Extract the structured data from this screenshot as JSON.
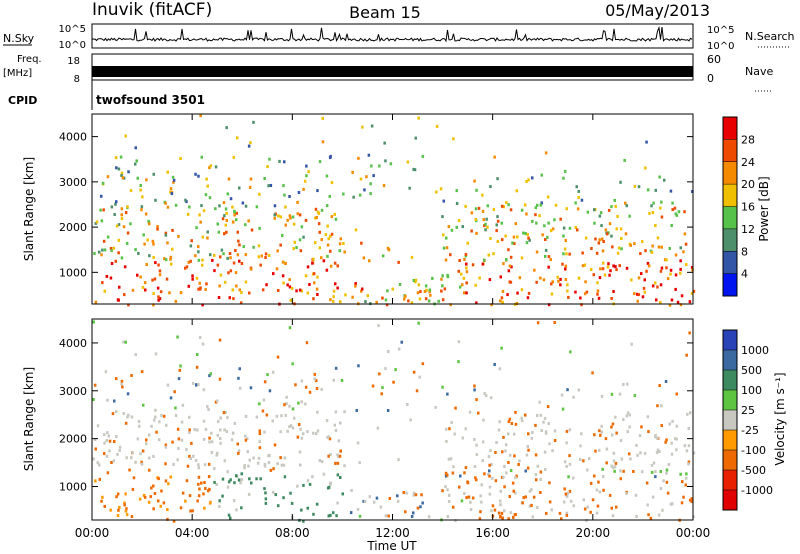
{
  "header": {
    "station": "Inuvik (fitACF)",
    "beam": "Beam 15",
    "date": "05/May/2013"
  },
  "strip_labels": {
    "nsky": "N.Sky",
    "nsky_top": "10^5",
    "nsky_bottom": "10^0",
    "nsky_right_top": "10^5",
    "nsky_right_bottom": "10^0",
    "nsearch": "N.Search",
    "freq": "Freq.",
    "freq_unit": "[MHz]",
    "freq_bottom": "8",
    "freq_top": "18",
    "nave": "Nave",
    "nave_top": "60",
    "nave_bottom": "0",
    "cpid": "CPID",
    "cpid_value": "twofsound 3501"
  },
  "colors": {
    "power": [
      "#0014f0",
      "#3355a8",
      "#4c8f6a",
      "#57c24a",
      "#f0c000",
      "#f58a00",
      "#ee4a00",
      "#e80000"
    ],
    "velocity": [
      "#2a44b8",
      "#3a6aa0",
      "#3d8a60",
      "#5dc441",
      "#c8c8c0",
      "#ff9a00",
      "#ee6a00",
      "#e82000",
      "#e00000"
    ],
    "axis": "#000000"
  },
  "chart_data": [
    {
      "type": "heatmap",
      "name": "power",
      "ylabel": "Slant Range [km]",
      "ylim": [
        300,
        4500
      ],
      "y_ticks": [
        "1000",
        "2000",
        "3000",
        "4000"
      ],
      "x_ticks": [
        "00:00",
        "04:00",
        "08:00",
        "12:00",
        "16:00",
        "20:00",
        "00:00"
      ],
      "colorbar_label": "Power [dB]",
      "colorbar_ticks": [
        "4",
        "8",
        "12",
        "16",
        "20",
        "24",
        "28"
      ]
    },
    {
      "type": "heatmap",
      "name": "velocity",
      "ylabel": "Slant Range [km]",
      "ylim": [
        300,
        4500
      ],
      "y_ticks": [
        "1000",
        "2000",
        "3000",
        "4000"
      ],
      "x_ticks": [
        "00:00",
        "04:00",
        "08:00",
        "12:00",
        "16:00",
        "20:00",
        "00:00"
      ],
      "xlabel": "Time UT",
      "colorbar_label": "Velocity [m s⁻¹]",
      "colorbar_ticks": [
        "1000",
        "500",
        "100",
        "25",
        "-25",
        "-100",
        "-500",
        "-1000"
      ]
    }
  ]
}
